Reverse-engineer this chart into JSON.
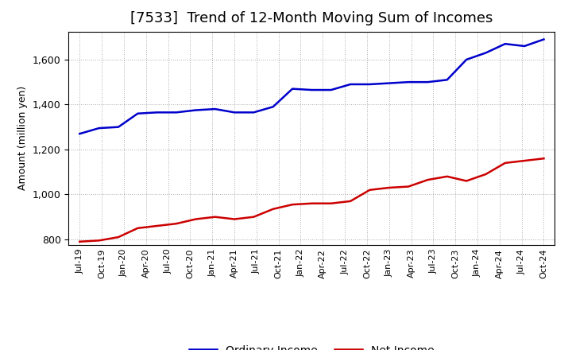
{
  "title": "[7533]  Trend of 12-Month Moving Sum of Incomes",
  "ylabel": "Amount (million yen)",
  "ylim": [
    775,
    1725
  ],
  "yticks": [
    800,
    1000,
    1200,
    1400,
    1600
  ],
  "background_color": "#ffffff",
  "grid_color": "#999999",
  "title_fontsize": 13,
  "tick_labels": [
    "Jul-19",
    "Oct-19",
    "Jan-20",
    "Apr-20",
    "Jul-20",
    "Oct-20",
    "Jan-21",
    "Apr-21",
    "Jul-21",
    "Oct-21",
    "Jan-22",
    "Apr-22",
    "Jul-22",
    "Oct-22",
    "Jan-23",
    "Apr-23",
    "Jul-23",
    "Oct-23",
    "Jan-24",
    "Apr-24",
    "Jul-24",
    "Oct-24"
  ],
  "ordinary_income": [
    1270,
    1295,
    1300,
    1360,
    1365,
    1365,
    1375,
    1380,
    1365,
    1365,
    1390,
    1470,
    1465,
    1465,
    1490,
    1490,
    1495,
    1500,
    1500,
    1510,
    1600,
    1630,
    1670,
    1660,
    1690
  ],
  "net_income": [
    790,
    795,
    810,
    850,
    860,
    870,
    890,
    900,
    890,
    900,
    935,
    955,
    960,
    960,
    970,
    1020,
    1030,
    1035,
    1065,
    1080,
    1060,
    1090,
    1140,
    1150,
    1160
  ],
  "ordinary_color": "#0000cc",
  "net_color": "#cc0000",
  "line_width": 1.8
}
